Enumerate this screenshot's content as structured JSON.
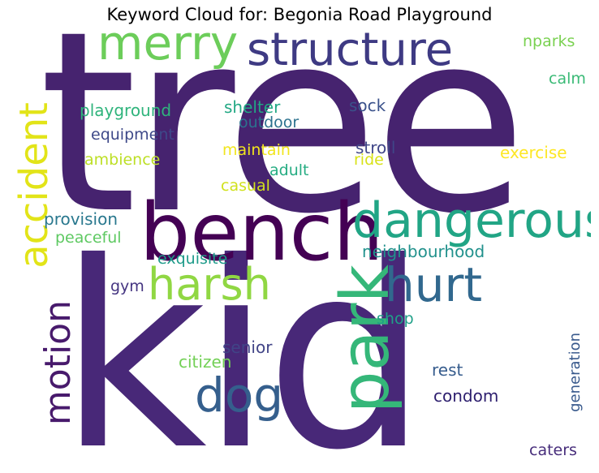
{
  "title": "Keyword Cloud for: Begonia Road Playground",
  "words": [
    {
      "text": "tree",
      "color": "#46236f"
    },
    {
      "text": "kid",
      "color": "#482878"
    },
    {
      "text": "bench",
      "color": "#440154"
    },
    {
      "text": "merry",
      "color": "#6ccd5a"
    },
    {
      "text": "structure",
      "color": "#3e3a83"
    },
    {
      "text": "dangerous",
      "color": "#21a585"
    },
    {
      "text": "harsh",
      "color": "#90d743"
    },
    {
      "text": "hurt",
      "color": "#31688e"
    },
    {
      "text": "park",
      "color": "#35b779"
    },
    {
      "text": "accident",
      "color": "#e2e418"
    },
    {
      "text": "motion",
      "color": "#481a6c"
    },
    {
      "text": "dog",
      "color": "#355f8d"
    },
    {
      "text": "nparks",
      "color": "#7ad151"
    },
    {
      "text": "calm",
      "color": "#3aba76"
    },
    {
      "text": "playground",
      "color": "#2fb47c"
    },
    {
      "text": "shelter",
      "color": "#22a884"
    },
    {
      "text": "sock",
      "color": "#3b528b"
    },
    {
      "text": "outdoor",
      "color": "#2c728e"
    },
    {
      "text": "equipment",
      "color": "#3e4989"
    },
    {
      "text": "stroll",
      "color": "#404688"
    },
    {
      "text": "ambience",
      "color": "#bddf26"
    },
    {
      "text": "maintain",
      "color": "#f1e51d"
    },
    {
      "text": "ride",
      "color": "#d8e219"
    },
    {
      "text": "exercise",
      "color": "#fde725"
    },
    {
      "text": "adult",
      "color": "#25ac82"
    },
    {
      "text": "casual",
      "color": "#d0e11c"
    },
    {
      "text": "provision",
      "color": "#29788e"
    },
    {
      "text": "peaceful",
      "color": "#5ec962"
    },
    {
      "text": "neighbourhood",
      "color": "#21918c"
    },
    {
      "text": "exquisite",
      "color": "#1e9b8a"
    },
    {
      "text": "gym",
      "color": "#453581"
    },
    {
      "text": "shop",
      "color": "#1fa088"
    },
    {
      "text": "senior",
      "color": "#414487"
    },
    {
      "text": "citizen",
      "color": "#73d056"
    },
    {
      "text": "rest",
      "color": "#365c8d"
    },
    {
      "text": "condom",
      "color": "#2d1e6e"
    },
    {
      "text": "generation",
      "color": "#38598c"
    },
    {
      "text": "caters",
      "color": "#472d7b"
    }
  ]
}
